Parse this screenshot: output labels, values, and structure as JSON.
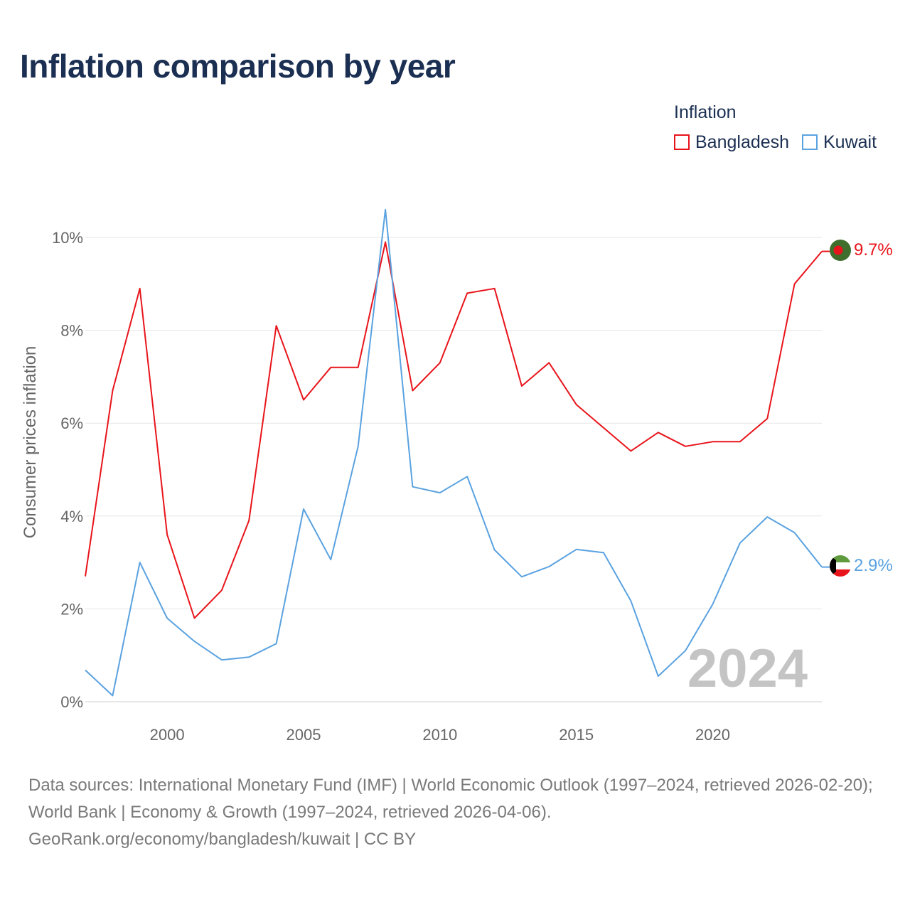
{
  "title": "Inflation comparison by year",
  "legend": {
    "title": "Inflation",
    "items": [
      {
        "label": "Bangladesh",
        "color": "#e8141b"
      },
      {
        "label": "Kuwait",
        "color": "#5aa2e0"
      }
    ]
  },
  "chart_data": {
    "type": "line",
    "title": "Inflation comparison by year",
    "xlabel": "",
    "ylabel": "Consumer prices inflation",
    "x": [
      1997,
      1998,
      1999,
      2000,
      2001,
      2002,
      2003,
      2004,
      2005,
      2006,
      2007,
      2008,
      2009,
      2010,
      2011,
      2012,
      2013,
      2014,
      2015,
      2016,
      2017,
      2018,
      2019,
      2020,
      2021,
      2022,
      2023,
      2024
    ],
    "xlim": [
      1997,
      2024
    ],
    "ylim": [
      0,
      10
    ],
    "x_ticks": [
      2000,
      2005,
      2010,
      2015,
      2020
    ],
    "x_tick_labels": [
      "2000",
      "2005",
      "2010",
      "2015",
      "2020"
    ],
    "y_ticks": [
      0,
      2,
      4,
      6,
      8,
      10
    ],
    "y_tick_labels": [
      "0%",
      "2%",
      "4%",
      "6%",
      "8%",
      "10%"
    ],
    "grid": true,
    "series": [
      {
        "name": "Bangladesh",
        "color": "#e8141b",
        "values": [
          2.7,
          6.7,
          8.9,
          3.6,
          1.8,
          2.4,
          3.9,
          8.1,
          6.5,
          7.2,
          7.2,
          9.9,
          6.7,
          7.3,
          8.8,
          8.9,
          6.8,
          7.3,
          6.4,
          5.9,
          5.4,
          5.8,
          5.5,
          5.6,
          5.6,
          6.1,
          9.0,
          9.7
        ],
        "end_label": "9.7%",
        "flag_icon": "bangladesh-flag-icon"
      },
      {
        "name": "Kuwait",
        "color": "#5aa2e0",
        "values": [
          0.68,
          0.13,
          3.0,
          1.8,
          1.3,
          0.9,
          0.96,
          1.25,
          4.15,
          3.06,
          5.5,
          10.6,
          4.63,
          4.5,
          4.85,
          3.27,
          2.69,
          2.91,
          3.28,
          3.21,
          2.17,
          0.55,
          1.1,
          2.1,
          3.42,
          3.98,
          3.64,
          2.9
        ],
        "end_label": "2.9%",
        "flag_icon": "kuwait-flag-icon"
      }
    ],
    "annotations": [
      "2024"
    ]
  },
  "footer": {
    "sources": "Data sources: International Monetary Fund (IMF) | World Economic Outlook (1997–2024, retrieved 2026-02-20); World Bank | Economy & Growth (1997–2024, retrieved 2026-04-06).",
    "credit": "GeoRank.org/economy/bangladesh/kuwait | CC BY"
  }
}
